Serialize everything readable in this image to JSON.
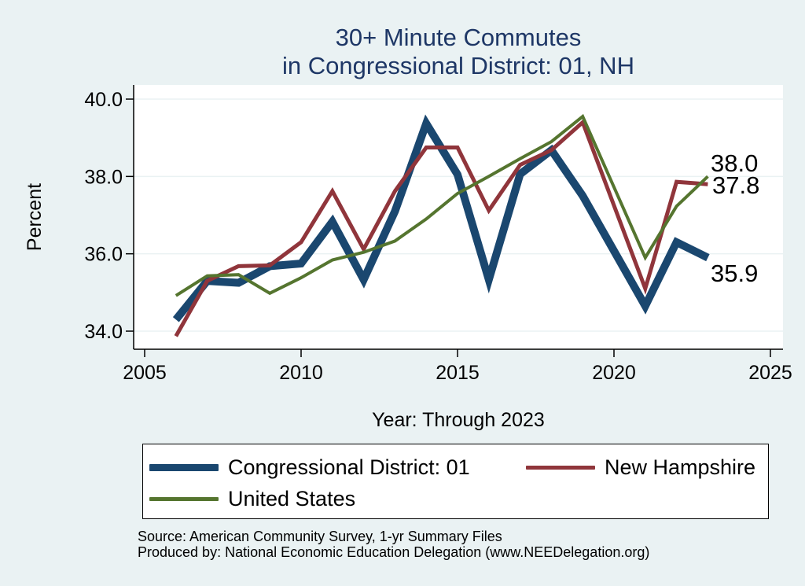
{
  "title_line1": "30+ Minute Commutes",
  "title_line2": "in Congressional District:  01, NH",
  "chart_data": {
    "type": "line",
    "xlabel": "Year: Through 2023",
    "ylabel": "Percent",
    "xlim": [
      2005,
      2025
    ],
    "ylim": [
      33.6,
      40.2
    ],
    "xticks": [
      2005,
      2010,
      2015,
      2020,
      2025
    ],
    "yticks": [
      34.0,
      36.0,
      38.0,
      40.0
    ],
    "grid": "horizontal",
    "legend_position": "bottom",
    "series": [
      {
        "name": "Congressional District:  01",
        "color": "#1a476f",
        "x": [
          2006,
          2007,
          2008,
          2009,
          2010,
          2011,
          2012,
          2013,
          2014,
          2015,
          2016,
          2017,
          2018,
          2019,
          2021,
          2022,
          2023
        ],
        "values": [
          34.3,
          35.3,
          35.25,
          35.68,
          35.75,
          36.83,
          35.33,
          37.1,
          39.37,
          38.05,
          35.33,
          38.06,
          38.68,
          37.5,
          34.65,
          36.3,
          35.9
        ],
        "end_label": "35.9"
      },
      {
        "name": "New Hampshire",
        "color": "#90353b",
        "x": [
          2006,
          2007,
          2008,
          2009,
          2010,
          2011,
          2012,
          2013,
          2014,
          2015,
          2016,
          2017,
          2018,
          2019,
          2021,
          2022,
          2023
        ],
        "values": [
          33.87,
          35.3,
          35.68,
          35.7,
          36.3,
          37.62,
          36.12,
          37.62,
          38.75,
          38.75,
          37.12,
          38.3,
          38.68,
          39.4,
          35.1,
          37.86,
          37.8
        ],
        "end_label": "37.8"
      },
      {
        "name": "United States",
        "color": "#55752f",
        "x": [
          2006,
          2007,
          2008,
          2009,
          2010,
          2011,
          2012,
          2013,
          2014,
          2015,
          2016,
          2017,
          2018,
          2019,
          2021,
          2022,
          2023
        ],
        "values": [
          34.92,
          35.43,
          35.46,
          34.98,
          35.38,
          35.84,
          36.04,
          36.33,
          36.9,
          37.56,
          38.0,
          38.46,
          38.9,
          39.55,
          35.9,
          37.23,
          38.0
        ],
        "end_label": "38.0"
      }
    ]
  },
  "source_line1": "Source: American Community Survey, 1-yr Summary Files",
  "source_line2": "Produced by: National Economic Education Delegation (www.NEEDelegation.org)"
}
